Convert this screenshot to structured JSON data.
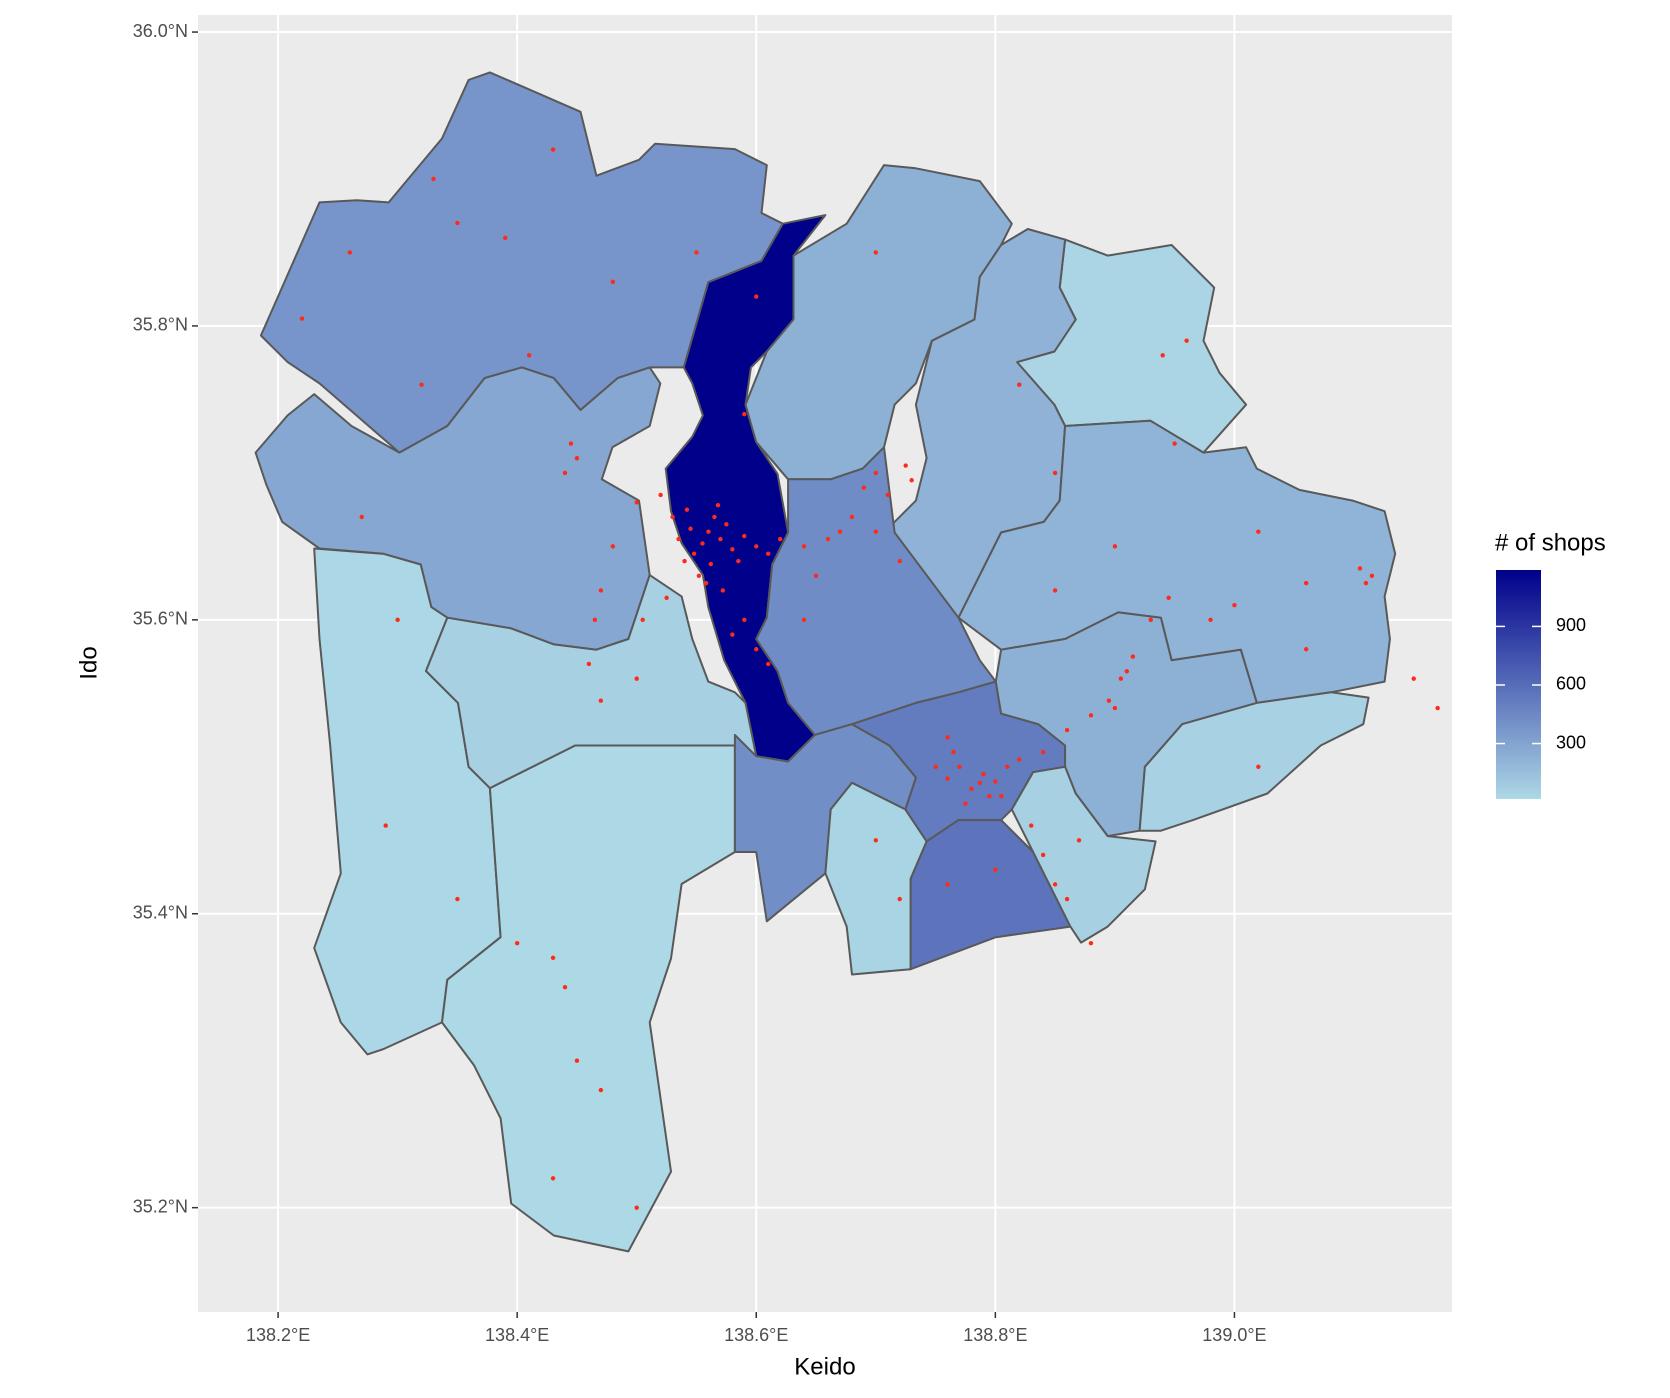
{
  "chart_data": {
    "type": "choropleth",
    "x_label": "Keido",
    "y_label": "Ido",
    "xlim": [
      138.133,
      139.182
    ],
    "ylim": [
      35.129,
      36.0116
    ],
    "xticks": [
      {
        "value": 138.2,
        "label": "138.2°E"
      },
      {
        "value": 138.4,
        "label": "138.4°E"
      },
      {
        "value": 138.6,
        "label": "138.6°E"
      },
      {
        "value": 138.8,
        "label": "138.8°E"
      },
      {
        "value": 139.0,
        "label": "139.0°E"
      }
    ],
    "yticks": [
      {
        "value": 35.2,
        "label": "35.2°N"
      },
      {
        "value": 35.4,
        "label": "35.4°N"
      },
      {
        "value": 35.6,
        "label": "35.6°N"
      },
      {
        "value": 35.8,
        "label": "35.8°N"
      },
      {
        "value": 36.0,
        "label": "36.0°N"
      }
    ],
    "grid": true,
    "legend": {
      "title": "# of shops",
      "position": "right",
      "fill_low": "#add8e6",
      "fill_high": "#00008b",
      "lim": [
        16,
        1189
      ],
      "ticks": [
        300,
        600,
        900
      ]
    },
    "regions": {
      "values": [
        380,
        1189,
        280,
        230,
        30,
        220,
        210,
        430,
        520,
        560,
        20,
        16,
        60,
        420,
        40,
        230,
        50,
        60
      ]
    },
    "points": {
      "color": "#ff2a1a",
      "x": [
        138.555,
        138.56,
        138.548,
        138.565,
        138.57,
        138.54,
        138.575,
        138.552,
        138.58,
        138.545,
        138.562,
        138.59,
        138.535,
        138.568,
        138.558,
        138.6,
        138.53,
        138.585,
        138.572,
        138.542,
        138.61,
        138.62,
        138.64,
        138.66,
        138.52,
        138.525,
        138.505,
        138.47,
        138.465,
        138.46,
        138.45,
        138.445,
        138.44,
        138.48,
        138.5,
        138.59,
        138.6,
        138.61,
        138.58,
        138.5,
        138.47,
        138.69,
        138.7,
        138.71,
        138.725,
        138.73,
        138.68,
        138.67,
        138.7,
        138.72,
        138.65,
        138.64,
        138.787,
        138.79,
        138.78,
        138.795,
        138.77,
        138.76,
        138.8,
        138.775,
        138.81,
        138.765,
        138.75,
        138.82,
        138.76,
        138.805,
        138.84,
        138.86,
        138.88,
        138.895,
        138.905,
        138.915,
        138.93,
        138.945,
        138.9,
        138.91,
        138.85,
        138.84,
        138.86,
        138.83,
        138.87,
        139.11,
        139.115,
        139.105,
        139.06,
        139.0,
        139.02,
        138.98,
        138.22,
        138.26,
        138.33,
        138.35,
        138.39,
        138.43,
        138.48,
        138.41,
        138.32,
        138.27,
        138.3,
        138.29,
        138.35,
        138.4,
        138.44,
        138.43,
        138.45,
        138.47,
        138.43,
        138.5,
        138.55,
        138.59,
        138.6,
        138.7,
        138.82,
        138.85,
        138.94,
        138.96,
        138.95,
        138.76,
        138.7,
        138.72,
        138.8,
        138.88,
        139.02,
        139.06,
        139.15,
        139.17,
        138.9,
        138.85
      ],
      "y": [
        35.652,
        35.66,
        35.645,
        35.67,
        35.655,
        35.64,
        35.665,
        35.63,
        35.648,
        35.662,
        35.638,
        35.657,
        35.655,
        35.678,
        35.625,
        35.65,
        35.67,
        35.64,
        35.62,
        35.675,
        35.645,
        35.655,
        35.65,
        35.655,
        35.685,
        35.615,
        35.6,
        35.62,
        35.6,
        35.57,
        35.71,
        35.72,
        35.7,
        35.65,
        35.68,
        35.6,
        35.58,
        35.57,
        35.59,
        35.56,
        35.545,
        35.69,
        35.7,
        35.685,
        35.705,
        35.695,
        35.67,
        35.66,
        35.66,
        35.64,
        35.63,
        35.6,
        35.489,
        35.495,
        35.485,
        35.48,
        35.5,
        35.492,
        35.49,
        35.475,
        35.5,
        35.51,
        35.5,
        35.505,
        35.52,
        35.48,
        35.51,
        35.525,
        35.535,
        35.545,
        35.56,
        35.575,
        35.6,
        35.615,
        35.54,
        35.565,
        35.42,
        35.44,
        35.41,
        35.46,
        35.45,
        35.625,
        35.63,
        35.635,
        35.625,
        35.61,
        35.66,
        35.6,
        35.805,
        35.85,
        35.9,
        35.87,
        35.86,
        35.92,
        35.83,
        35.78,
        35.76,
        35.67,
        35.6,
        35.46,
        35.41,
        35.38,
        35.35,
        35.37,
        35.3,
        35.28,
        35.22,
        35.2,
        35.85,
        35.74,
        35.82,
        35.85,
        35.76,
        35.7,
        35.78,
        35.79,
        35.72,
        35.42,
        35.45,
        35.41,
        35.43,
        35.38,
        35.5,
        35.58,
        35.56,
        35.54,
        35.65,
        35.62
      ]
    }
  }
}
